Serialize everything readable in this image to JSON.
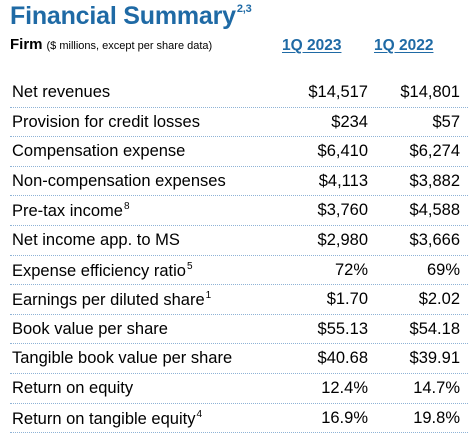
{
  "header": {
    "title": "Financial Summary",
    "title_footnote": "2,3",
    "section_label": "Firm",
    "section_note": "($ millions, except per share data)",
    "columns": [
      "1Q 2023",
      "1Q 2022"
    ]
  },
  "colors": {
    "accent": "#1f6aa5",
    "divider": "#8fb3d6"
  },
  "rows": [
    {
      "label": "Net revenues",
      "footnote": "",
      "values": [
        "$14,517",
        "$14,801"
      ]
    },
    {
      "label": "Provision for credit losses",
      "footnote": "",
      "values": [
        "$234",
        "$57"
      ]
    },
    {
      "label": "Compensation expense",
      "footnote": "",
      "values": [
        "$6,410",
        "$6,274"
      ]
    },
    {
      "label": "Non-compensation expenses",
      "footnote": "",
      "values": [
        "$4,113",
        "$3,882"
      ]
    },
    {
      "label": "Pre-tax income",
      "footnote": "8",
      "values": [
        "$3,760",
        "$4,588"
      ]
    },
    {
      "label": "Net income app. to MS",
      "footnote": "",
      "values": [
        "$2,980",
        "$3,666"
      ]
    },
    {
      "label": "Expense efficiency ratio",
      "footnote": "5",
      "values": [
        "72%",
        "69%"
      ]
    },
    {
      "label": "Earnings per diluted share",
      "footnote": "1",
      "values": [
        "$1.70",
        "$2.02"
      ]
    },
    {
      "label": "Book value per share",
      "footnote": "",
      "values": [
        "$55.13",
        "$54.18"
      ]
    },
    {
      "label": "Tangible book value per share",
      "footnote": "",
      "values": [
        "$40.68",
        "$39.91"
      ]
    },
    {
      "label": "Return on equity",
      "footnote": "",
      "values": [
        "12.4%",
        "14.7%"
      ]
    },
    {
      "label": "Return on tangible equity",
      "footnote": "4",
      "values": [
        "16.9%",
        "19.8%"
      ]
    }
  ]
}
